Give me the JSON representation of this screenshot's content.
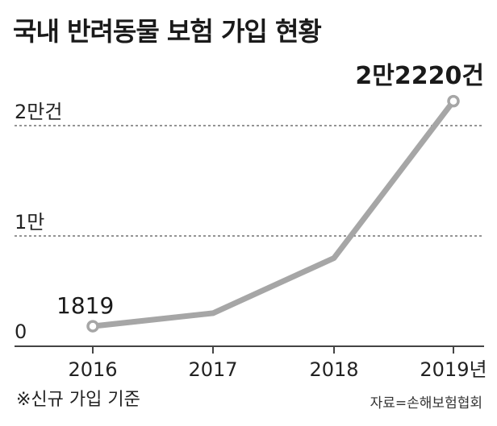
{
  "chart_data": {
    "type": "line",
    "title": "국내 반려동물 보험 가입 현황",
    "categories": [
      "2016",
      "2017",
      "2018",
      "2019년"
    ],
    "series": [
      {
        "values": [
          1819,
          3000,
          8000,
          22220
        ]
      }
    ],
    "y_ticks": [
      {
        "value": 0,
        "label": "0"
      },
      {
        "value": 10000,
        "label": "1만"
      },
      {
        "value": 20000,
        "label": "2만건"
      }
    ],
    "data_labels": [
      {
        "index": 0,
        "label": "1819"
      },
      {
        "index": 3,
        "label": "2만2220건"
      }
    ],
    "ylim": [
      0,
      22220
    ],
    "grid": "horizontal-dashed",
    "colors": {
      "line": "#a6a6a6",
      "grid": "#555555",
      "axis": "#444444",
      "marker_fill": "#ffffff"
    }
  },
  "footer": {
    "note": "※신규 가입 기준",
    "source": "자료=손해보험협회"
  }
}
